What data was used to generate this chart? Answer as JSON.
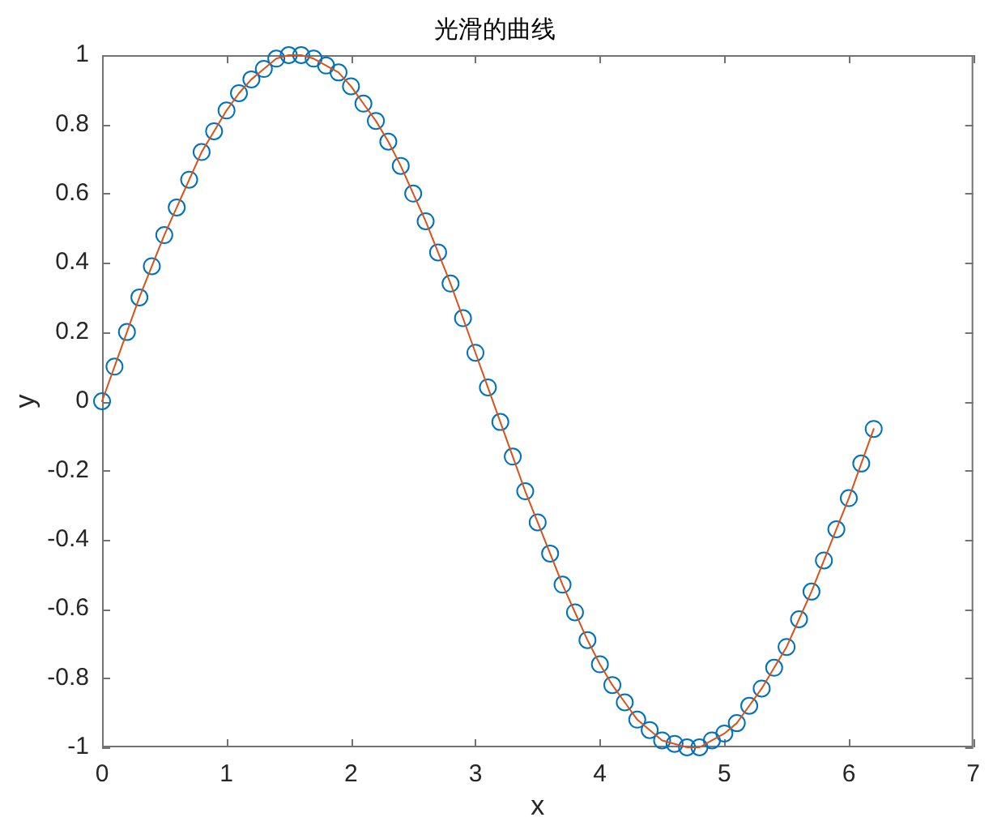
{
  "chart_data": {
    "type": "line",
    "title": "光滑的曲线",
    "xlabel": "x",
    "ylabel": "y",
    "x": [
      0,
      0.1,
      0.2,
      0.3,
      0.4,
      0.5,
      0.6,
      0.7,
      0.8,
      0.9,
      1,
      1.1,
      1.2,
      1.3,
      1.4,
      1.5,
      1.6,
      1.7,
      1.8,
      1.9,
      2,
      2.1,
      2.2,
      2.3,
      2.4,
      2.5,
      2.6,
      2.7,
      2.8,
      2.9,
      3,
      3.1,
      3.2,
      3.3,
      3.4,
      3.5,
      3.6,
      3.7,
      3.8,
      3.9,
      4,
      4.1,
      4.2,
      4.3,
      4.4,
      4.5,
      4.6,
      4.7,
      4.8,
      4.9,
      5,
      5.1,
      5.2,
      5.3,
      5.4,
      5.5,
      5.6,
      5.7,
      5.8,
      5.9,
      6,
      6.1,
      6.2
    ],
    "series": [
      {
        "color": "#d95319",
        "marker": "none",
        "line_style": "solid",
        "values": [
          0,
          0.1,
          0.2,
          0.3,
          0.39,
          0.48,
          0.56,
          0.64,
          0.72,
          0.78,
          0.84,
          0.89,
          0.93,
          0.96,
          0.99,
          1.0,
          1.0,
          0.99,
          0.97,
          0.95,
          0.91,
          0.86,
          0.81,
          0.75,
          0.68,
          0.6,
          0.52,
          0.43,
          0.34,
          0.24,
          0.14,
          0.04,
          -0.06,
          -0.16,
          -0.26,
          -0.35,
          -0.44,
          -0.53,
          -0.61,
          -0.69,
          -0.76,
          -0.82,
          -0.87,
          -0.92,
          -0.95,
          -0.98,
          -0.99,
          -1.0,
          -1.0,
          -0.98,
          -0.96,
          -0.93,
          -0.88,
          -0.83,
          -0.77,
          -0.71,
          -0.63,
          -0.55,
          -0.46,
          -0.37,
          -0.28,
          -0.18,
          -0.08
        ]
      },
      {
        "type": "scatter",
        "color": "#0072bd",
        "marker": "circle",
        "values": [
          0,
          0.1,
          0.2,
          0.3,
          0.39,
          0.48,
          0.56,
          0.64,
          0.72,
          0.78,
          0.84,
          0.89,
          0.93,
          0.96,
          0.99,
          1.0,
          1.0,
          0.99,
          0.97,
          0.95,
          0.91,
          0.86,
          0.81,
          0.75,
          0.68,
          0.6,
          0.52,
          0.43,
          0.34,
          0.24,
          0.14,
          0.04,
          -0.06,
          -0.16,
          -0.26,
          -0.35,
          -0.44,
          -0.53,
          -0.61,
          -0.69,
          -0.76,
          -0.82,
          -0.87,
          -0.92,
          -0.95,
          -0.98,
          -0.99,
          -1.0,
          -1.0,
          -0.98,
          -0.96,
          -0.93,
          -0.88,
          -0.83,
          -0.77,
          -0.71,
          -0.63,
          -0.55,
          -0.46,
          -0.37,
          -0.28,
          -0.18,
          -0.08
        ]
      }
    ],
    "xlim": [
      0,
      7
    ],
    "xticks": [
      0,
      1,
      2,
      3,
      4,
      5,
      6,
      7
    ],
    "ylim": [
      -1,
      1
    ],
    "yticks": [
      -1,
      -0.8,
      -0.6,
      -0.4,
      -0.2,
      0,
      0.2,
      0.4,
      0.6,
      0.8,
      1
    ],
    "grid": false,
    "legend": false
  }
}
